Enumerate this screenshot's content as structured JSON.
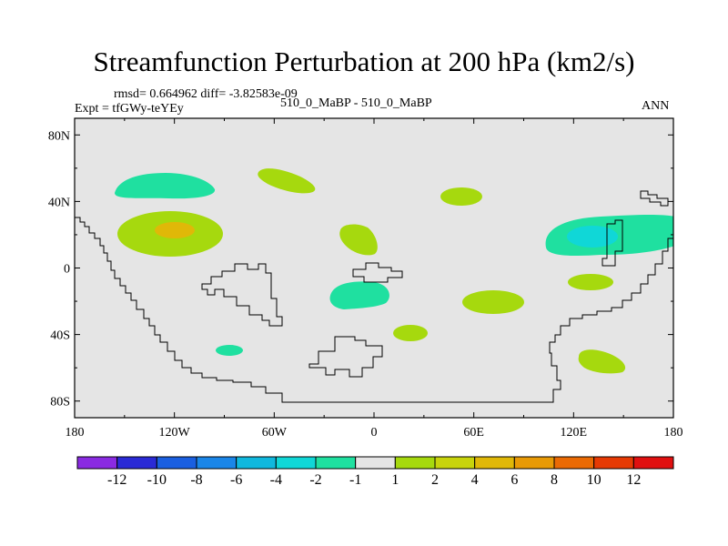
{
  "title": "Streamfunction Perturbation at 200 hPa (km2/s)",
  "rmsd_line": "rmsd= 0.664962 diff= -3.82583e-09",
  "expt_line": "Expt = tfGWy-teYEy",
  "case_line": "510_0_MaBP - 510_0_MaBP",
  "season": "ANN",
  "chart_data": {
    "type": "heatmap",
    "title": "Streamfunction Perturbation at 200 hPa (km2/s)",
    "projection": "cylindrical equidistant",
    "lon_range": [
      -180,
      180
    ],
    "lat_range": [
      -90,
      90
    ],
    "x_tick_values": [
      -180,
      -120,
      -60,
      0,
      60,
      120,
      180
    ],
    "x_tick_labels": [
      "180",
      "120W",
      "60W",
      "0",
      "60E",
      "120E",
      "180"
    ],
    "y_tick_values": [
      80,
      40,
      0,
      -40,
      -80
    ],
    "y_tick_labels": [
      "80N",
      "40N",
      "0",
      "40S",
      "80S"
    ],
    "colorbar": {
      "labels": [
        "-12",
        "-10",
        "-8",
        "-6",
        "-4",
        "-2",
        "-1",
        "1",
        "2",
        "4",
        "6",
        "8",
        "10",
        "12"
      ],
      "colors": [
        "#8a2be2",
        "#2a2ad6",
        "#1a5fe0",
        "#1a86e8",
        "#10b8de",
        "#10d7d7",
        "#1fe0a0",
        "#e5e5e5",
        "#a6d90e",
        "#c8d40c",
        "#e0b808",
        "#e89a06",
        "#ea6a04",
        "#e63a04",
        "#e01010"
      ]
    },
    "background_color": "#e5e5e5",
    "features": [
      {
        "name": "n-pacific-neg",
        "lon": -131,
        "lat": 49,
        "value_band": "-2 to -1"
      },
      {
        "name": "n-pacific-pos",
        "lon": -126,
        "lat": 22,
        "value_band": "1 to 2"
      },
      {
        "name": "n-pacific-pos-core",
        "lon": -123,
        "lat": 22,
        "value_band": "4 to 6"
      },
      {
        "name": "n-america-pos",
        "lon": -54,
        "lat": 53,
        "value_band": "1 to 2"
      },
      {
        "name": "n-atlantic-pos",
        "lon": -9,
        "lat": 18,
        "value_band": "1 to 2"
      },
      {
        "name": "asia-pos",
        "lon": 53,
        "lat": 43,
        "value_band": "1 to 2"
      },
      {
        "name": "tropical-atlantic-neg",
        "lon": -9,
        "lat": -16,
        "value_band": "-2 to -1"
      },
      {
        "name": "indian-ocean-pos",
        "lon": 71,
        "lat": -20,
        "value_band": "1 to 2"
      },
      {
        "name": "s-atlantic-pos",
        "lon": 21,
        "lat": -40,
        "value_band": "1 to 2"
      },
      {
        "name": "w-pacific-neg",
        "lon": 145,
        "lat": 20,
        "value_band": "-2 to -1"
      },
      {
        "name": "w-pacific-neg-core",
        "lon": 130,
        "lat": 19,
        "value_band": "-4 to -2"
      },
      {
        "name": "australia-pos",
        "lon": 132,
        "lat": -8,
        "value_band": "1 to 2"
      },
      {
        "name": "s-pacific-pos",
        "lon": 136,
        "lat": -55,
        "value_band": "1 to 2"
      },
      {
        "name": "s-ocean-neg",
        "lon": -87,
        "lat": -50,
        "value_band": "-2 to -1"
      }
    ]
  }
}
